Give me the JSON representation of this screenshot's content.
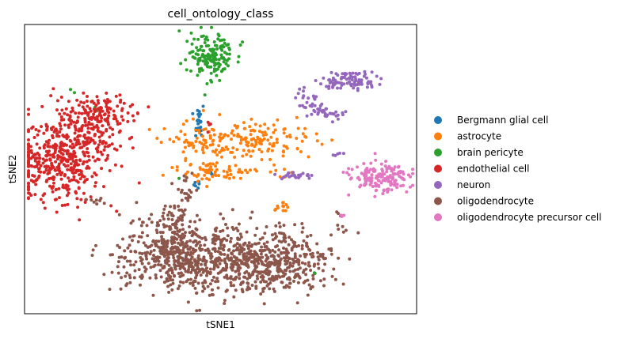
{
  "chart_data": {
    "type": "scatter",
    "title": "cell_ontology_class",
    "xlabel": "tSNE1",
    "ylabel": "tSNE2",
    "xlim": [
      -50,
      50
    ],
    "ylim": [
      -50,
      50
    ],
    "x_ticks": "hidden",
    "y_ticks": "hidden",
    "grid": false,
    "legend_position": "outside right",
    "series": [
      {
        "name": "Bergmann glial cell",
        "color": "#1f77b4",
        "clusters": [
          {
            "center": [
              -5.5,
              16
            ],
            "spread": [
              0.6,
              2.8
            ],
            "count": 22
          },
          {
            "center": [
              -6,
              -5
            ],
            "spread": [
              1.0,
              0.6
            ],
            "count": 6
          },
          {
            "center": [
              -2.5,
              -1.5
            ],
            "spread": [
              0.3,
              0.3
            ],
            "count": 2
          }
        ]
      },
      {
        "name": "astrocyte",
        "color": "#ff7f0e",
        "clusters": [
          {
            "center": [
              5,
              10
            ],
            "spread": [
              9.0,
              3.5
            ],
            "count": 190
          },
          {
            "center": [
              -4,
              -1
            ],
            "spread": [
              4.0,
              2.0
            ],
            "count": 55
          },
          {
            "center": [
              8,
              -1.5
            ],
            "spread": [
              6.0,
              1.2
            ],
            "count": 20
          },
          {
            "center": [
              15.5,
              -13
            ],
            "spread": [
              1.2,
              1.0
            ],
            "count": 12
          },
          {
            "center": [
              -8,
              8
            ],
            "spread": [
              1.5,
              2.0
            ],
            "count": 10
          }
        ]
      },
      {
        "name": "brain pericyte",
        "color": "#2ca02c",
        "clusters": [
          {
            "center": [
              -3,
              40
            ],
            "spread": [
              3.4,
              3.8
            ],
            "count": 160
          },
          {
            "center": [
              -38,
              27
            ],
            "spread": [
              0.6,
              0.6
            ],
            "count": 2
          },
          {
            "center": [
              -32,
              21
            ],
            "spread": [
              0.5,
              0.5
            ],
            "count": 2
          },
          {
            "center": [
              -10.5,
              -3
            ],
            "spread": [
              0.3,
              0.3
            ],
            "count": 1
          },
          {
            "center": [
              -11.5,
              -24
            ],
            "spread": [
              0.3,
              0.3
            ],
            "count": 1
          },
          {
            "center": [
              24,
              -36
            ],
            "spread": [
              0.4,
              0.4
            ],
            "count": 2
          }
        ]
      },
      {
        "name": "endothelial cell",
        "color": "#d62728",
        "clusters": [
          {
            "center": [
              -42,
              2
            ],
            "spread": [
              6.0,
              7.0
            ],
            "count": 360
          },
          {
            "center": [
              -35,
              12
            ],
            "spread": [
              4.5,
              6.0
            ],
            "count": 180
          },
          {
            "center": [
              -30,
              20
            ],
            "spread": [
              4.0,
              3.0
            ],
            "count": 100
          },
          {
            "center": [
              -2.5,
              15
            ],
            "spread": [
              0.5,
              1.2
            ],
            "count": 4
          }
        ]
      },
      {
        "name": "neuron",
        "color": "#9467bd",
        "clusters": [
          {
            "center": [
              33,
              30.5
            ],
            "spread": [
              3.5,
              1.6
            ],
            "count": 90
          },
          {
            "center": [
              22.5,
              23
            ],
            "spread": [
              1.5,
              1.8
            ],
            "count": 25
          },
          {
            "center": [
              27,
              19.5
            ],
            "spread": [
              2.0,
              1.2
            ],
            "count": 30
          },
          {
            "center": [
              18.5,
              -2
            ],
            "spread": [
              3.0,
              0.8
            ],
            "count": 25
          },
          {
            "center": [
              30,
              5
            ],
            "spread": [
              0.8,
              0.4
            ],
            "count": 5
          },
          {
            "center": [
              27.5,
              28
            ],
            "spread": [
              0.6,
              0.6
            ],
            "count": 3
          }
        ]
      },
      {
        "name": "oligodendrocyte",
        "color": "#8c564b",
        "clusters": [
          {
            "center": [
              -10,
              -30
            ],
            "spread": [
              8.5,
              6.0
            ],
            "count": 520
          },
          {
            "center": [
              10,
              -32
            ],
            "spread": [
              9.0,
              5.5
            ],
            "count": 560
          },
          {
            "center": [
              -12,
              -19
            ],
            "spread": [
              2.2,
              4.0
            ],
            "count": 70
          },
          {
            "center": [
              -9,
              -8
            ],
            "spread": [
              1.0,
              2.5
            ],
            "count": 20
          },
          {
            "center": [
              -32,
              -11
            ],
            "spread": [
              1.2,
              0.6
            ],
            "count": 8
          },
          {
            "center": [
              30.5,
              -16
            ],
            "spread": [
              0.6,
              0.8
            ],
            "count": 5
          }
        ]
      },
      {
        "name": "oligodendrocyte precursor cell",
        "color": "#e377c2",
        "clusters": [
          {
            "center": [
              41,
              -3
            ],
            "spread": [
              3.6,
              2.6
            ],
            "count": 160
          },
          {
            "center": [
              31,
              -16
            ],
            "spread": [
              0.6,
              0.6
            ],
            "count": 3
          }
        ]
      }
    ]
  }
}
